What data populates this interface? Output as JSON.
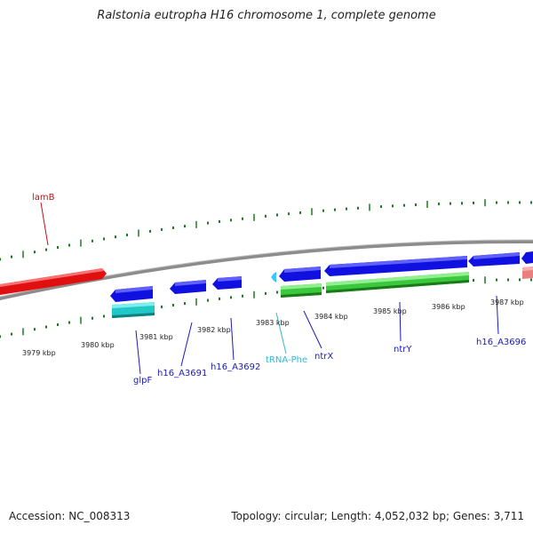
{
  "title": "Ralstonia eutropha H16 chromosome 1, complete genome",
  "footer": {
    "accession": "Accession: NC_008313",
    "summary": "Topology: circular; Length: 4,052,032 bp; Genes: 3,711"
  },
  "colors": {
    "backbone": "#8c8c8c",
    "ticks": "#1e7a1e",
    "cds_forward": "#1010e0",
    "cds_reverse_rna": "#e01010",
    "trna": "#3cc8ff",
    "gene_match": "#3cc83c",
    "label_blue": "#1a1ab8",
    "label_red": "#c01010",
    "label_cyan": "#30b8d8"
  },
  "axis_labels": [
    {
      "text": "3979 kbp"
    },
    {
      "text": "3980 kbp"
    },
    {
      "text": "3981 kbp"
    },
    {
      "text": "3982 kbp"
    },
    {
      "text": "3983 kbp"
    },
    {
      "text": "3984 kbp"
    },
    {
      "text": "3985 kbp"
    },
    {
      "text": "3986 kbp"
    },
    {
      "text": "3987 kbp"
    }
  ],
  "gene_labels": {
    "lamB": "lamB",
    "glpF": "glpF",
    "h16_A3691": "h16_A3691",
    "h16_A3692": "h16_A3692",
    "tRNA_Phe": "tRNA-Phe",
    "ntrX": "ntrX",
    "ntrY": "ntrY",
    "h16_A3696": "h16_A3696"
  }
}
